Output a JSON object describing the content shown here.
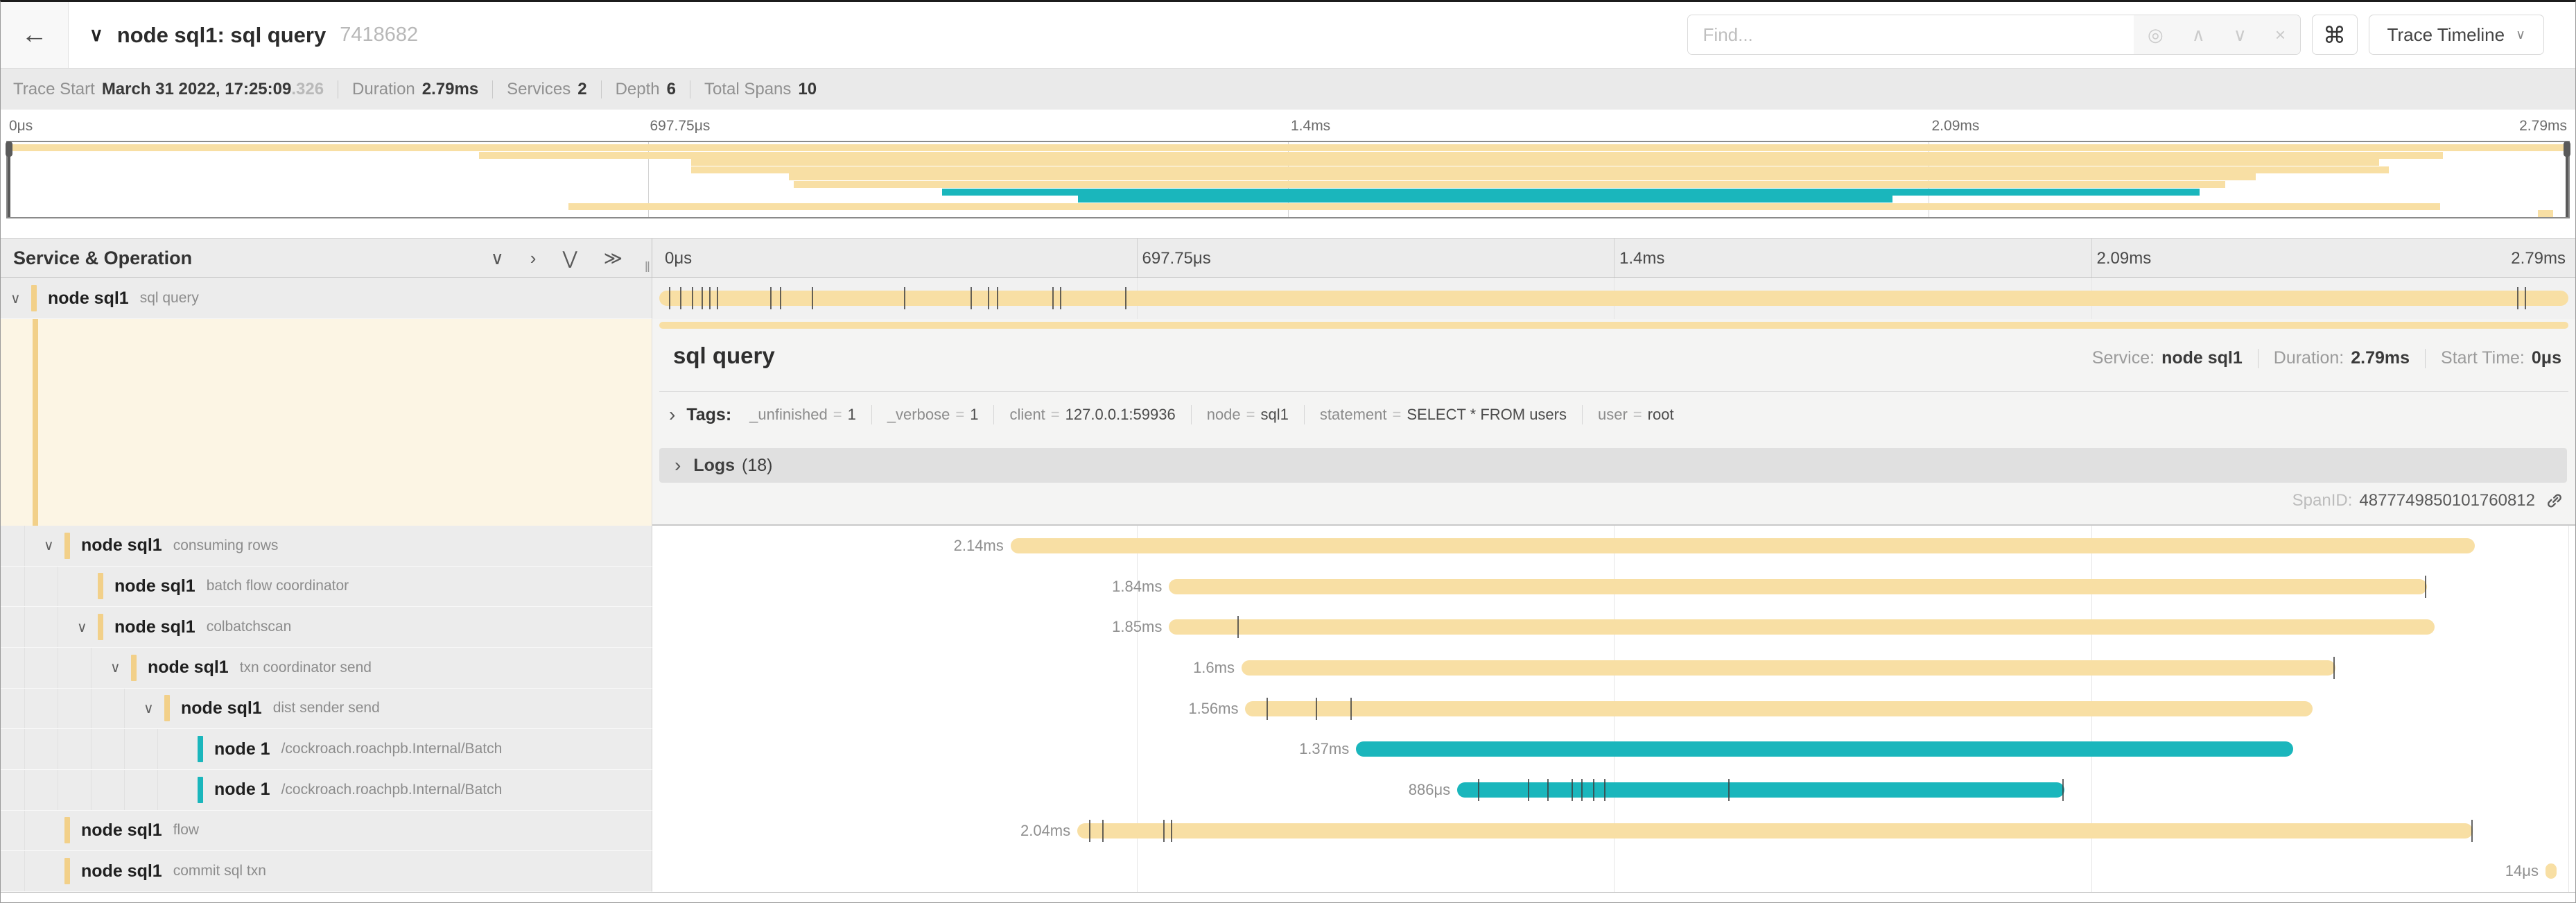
{
  "icons": {
    "back": "←",
    "collapse_caret": "∨",
    "find_locate": "◎",
    "find_prev": "∧",
    "find_next": "∨",
    "find_clear": "×",
    "keyboard_shortcut": "⌘",
    "dropdown_caret": "∨",
    "collapse_one": "∨",
    "expand_one": "›",
    "collapse_all": "⋁",
    "expand_all": "≫",
    "resize_handle": "‖",
    "row_caret": "∨",
    "section_caret": "›"
  },
  "header": {
    "title": "node sql1: sql query",
    "trace_id": "7418682",
    "find_placeholder": "Find...",
    "view_button": "Trace Timeline"
  },
  "summary": {
    "items": [
      {
        "label": "Trace Start",
        "value": "March 31 2022, 17:25:09",
        "suffix": ".326"
      },
      {
        "label": "Duration",
        "value": "2.79ms",
        "suffix": ""
      },
      {
        "label": "Services",
        "value": "2",
        "suffix": ""
      },
      {
        "label": "Depth",
        "value": "6",
        "suffix": ""
      },
      {
        "label": "Total Spans",
        "value": "10",
        "suffix": ""
      }
    ]
  },
  "timeline": {
    "left_title": "Service & Operation",
    "ticks": [
      "0μs",
      "697.75μs",
      "1.4ms",
      "2.09ms",
      "2.79ms"
    ]
  },
  "colors": {
    "tan_bar": "#f8dfa4",
    "tan_marker": "#f2d089",
    "teal": "#1ab6bc",
    "cream": "#fcf5e4"
  },
  "spans": [
    {
      "service": "node sql1",
      "operation": "sql query",
      "depth": 0,
      "expandable": true,
      "color": "tan",
      "start_pct": 0,
      "width_pct": 100,
      "duration_label": "",
      "log_ticks": [
        0.5,
        1.1,
        1.7,
        2.2,
        2.6,
        3.0,
        5.8,
        6.3,
        8.0,
        12.8,
        16.3,
        17.2,
        17.7,
        20.6,
        21.0,
        24.4,
        97.3,
        97.7
      ]
    },
    {
      "service": "node sql1",
      "operation": "consuming rows",
      "depth": 1,
      "expandable": true,
      "color": "tan",
      "start_pct": 18.4,
      "width_pct": 76.7,
      "duration_label": "2.14ms",
      "log_ticks": []
    },
    {
      "service": "node sql1",
      "operation": "batch flow coordinator",
      "depth": 2,
      "expandable": false,
      "color": "tan",
      "start_pct": 26.7,
      "width_pct": 65.9,
      "duration_label": "1.84ms",
      "log_ticks": [
        92.5
      ]
    },
    {
      "service": "node sql1",
      "operation": "colbatchscan",
      "depth": 2,
      "expandable": true,
      "color": "tan",
      "start_pct": 26.7,
      "width_pct": 66.3,
      "duration_label": "1.85ms",
      "log_ticks": [
        30.3
      ]
    },
    {
      "service": "node sql1",
      "operation": "txn coordinator send",
      "depth": 3,
      "expandable": true,
      "color": "tan",
      "start_pct": 30.5,
      "width_pct": 57.3,
      "duration_label": "1.6ms",
      "log_ticks": [
        87.7
      ]
    },
    {
      "service": "node sql1",
      "operation": "dist sender send",
      "depth": 4,
      "expandable": true,
      "color": "tan",
      "start_pct": 30.7,
      "width_pct": 55.9,
      "duration_label": "1.56ms",
      "log_ticks": [
        31.8,
        34.4,
        36.2
      ]
    },
    {
      "service": "node 1",
      "operation": "/cockroach.roachpb.Internal/Batch",
      "depth": 5,
      "expandable": false,
      "color": "teal",
      "start_pct": 36.5,
      "width_pct": 49.1,
      "duration_label": "1.37ms",
      "log_ticks": []
    },
    {
      "service": "node 1",
      "operation": "/cockroach.roachpb.Internal/Batch",
      "depth": 5,
      "expandable": false,
      "color": "teal",
      "start_pct": 41.8,
      "width_pct": 31.8,
      "duration_label": "886μs",
      "log_ticks": [
        42.9,
        45.5,
        46.5,
        47.8,
        48.3,
        48.9,
        49.5,
        56.0,
        73.5
      ]
    },
    {
      "service": "node sql1",
      "operation": "flow",
      "depth": 1,
      "expandable": false,
      "color": "tan",
      "start_pct": 21.9,
      "width_pct": 73.1,
      "duration_label": "2.04ms",
      "log_ticks": [
        22.5,
        23.2,
        26.4,
        26.8,
        94.9
      ]
    },
    {
      "service": "node sql1",
      "operation": "commit sql txn",
      "depth": 1,
      "expandable": false,
      "color": "tan",
      "start_pct": 98.8,
      "width_pct": 0.6,
      "duration_label": "14μs",
      "log_ticks": []
    }
  ],
  "detail": {
    "title": "sql query",
    "service_label": "Service:",
    "service": "node sql1",
    "duration_label": "Duration:",
    "duration": "2.79ms",
    "start_label": "Start Time:",
    "start": "0μs",
    "tags_label": "Tags:",
    "tags": [
      {
        "key": "_unfinished",
        "value": "1"
      },
      {
        "key": "_verbose",
        "value": "1"
      },
      {
        "key": "client",
        "value": "127.0.0.1:59936"
      },
      {
        "key": "node",
        "value": "sql1"
      },
      {
        "key": "statement",
        "value": "SELECT * FROM users"
      },
      {
        "key": "user",
        "value": "root"
      }
    ],
    "logs_label": "Logs",
    "logs_count": "(18)",
    "span_id_label": "SpanID:",
    "span_id": "4877749850101760812"
  }
}
